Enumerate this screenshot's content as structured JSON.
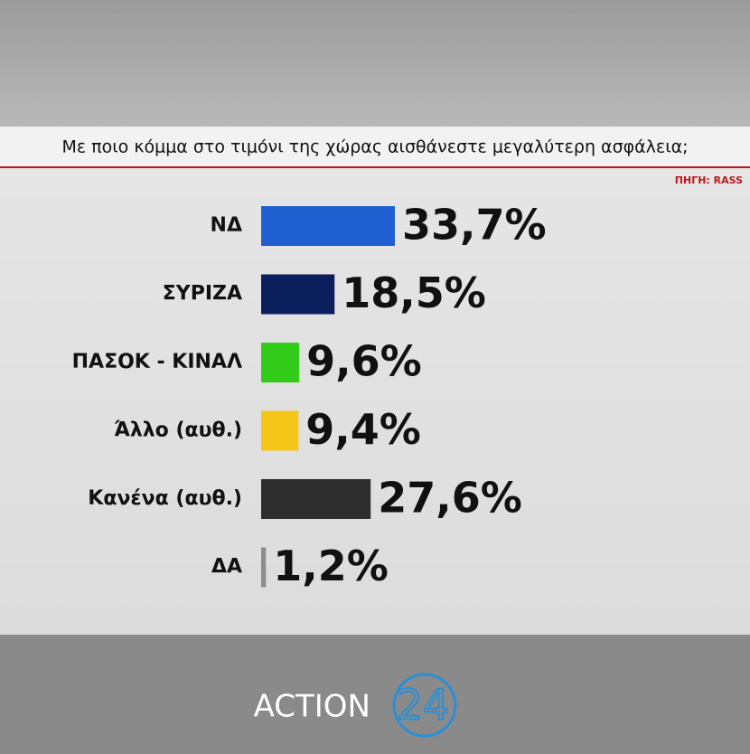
{
  "chart_data": {
    "type": "bar",
    "orientation": "horizontal",
    "title": "Με ποιο κόμμα στο τιμόνι της χώρας αισθάνεστε μεγαλύτερη ασφάλεια;",
    "source": "ΠΗΓΗ: RASS",
    "categories": [
      "ΝΔ",
      "ΣΥΡΙΖΑ",
      "ΠΑΣΟΚ - ΚΙΝΑΛ",
      "Άλλο (αυθ.)",
      "Κανένα (αυθ.)",
      "ΔΑ"
    ],
    "values": [
      33.7,
      18.5,
      9.6,
      9.4,
      27.6,
      1.2
    ],
    "value_labels": [
      "33,7%",
      "18,5%",
      "9,6%",
      "9,4%",
      "27,6%",
      "1,2%"
    ],
    "colors": [
      "#1f5fd0",
      "#0b1f5c",
      "#33cc1a",
      "#f5c518",
      "#2d2d2d",
      "#8c8c8c"
    ]
  },
  "brand": {
    "name": "ACTION",
    "number": "24"
  }
}
